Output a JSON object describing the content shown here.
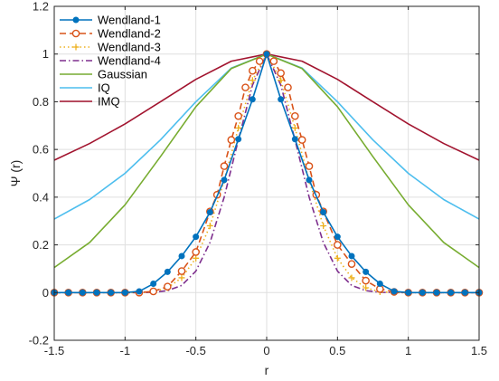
{
  "chart_data": {
    "type": "line",
    "xlabel": "r",
    "ylabel": "Ψ (r)",
    "xlim": [
      -1.5,
      1.5
    ],
    "ylim": [
      -0.2,
      1.2
    ],
    "xticks": [
      -1.5,
      -1,
      -0.5,
      0,
      0.5,
      1,
      1.5
    ],
    "xtick_labels": [
      "-1.5",
      "-1",
      "-0.5",
      "0",
      "0.5",
      "1",
      "1.5"
    ],
    "yticks": [
      -0.2,
      0,
      0.2,
      0.4,
      0.6,
      0.8,
      1,
      1.2
    ],
    "ytick_labels": [
      "-0.2",
      "0",
      "0.2",
      "0.4",
      "0.6",
      "0.8",
      "1",
      "1.2"
    ],
    "grid": true,
    "legend_position": "top-left",
    "series": [
      {
        "name": "Wendland-1",
        "color": "#0072BD",
        "style": "solid",
        "marker": "filled-circle",
        "x": [
          -1.5,
          -1.4,
          -1.3,
          -1.2,
          -1.1,
          -1.0,
          -0.9,
          -0.8,
          -0.7,
          -0.6,
          -0.5,
          -0.4,
          -0.3,
          -0.2,
          -0.1,
          0.0,
          0.1,
          0.2,
          0.3,
          0.4,
          0.5,
          0.6,
          0.7,
          0.8,
          0.9,
          1.0,
          1.1,
          1.2,
          1.3,
          1.4,
          1.5
        ],
        "y": [
          0,
          0,
          0,
          0,
          0,
          0,
          0.005,
          0.037,
          0.087,
          0.153,
          0.234,
          0.337,
          0.472,
          0.643,
          0.81,
          1.0,
          0.81,
          0.643,
          0.472,
          0.337,
          0.234,
          0.153,
          0.087,
          0.037,
          0.005,
          0,
          0,
          0,
          0,
          0,
          0
        ]
      },
      {
        "name": "Wendland-2",
        "color": "#D95319",
        "style": "dashed",
        "marker": "open-circle",
        "x": [
          -1.5,
          -1.4,
          -1.3,
          -1.2,
          -1.1,
          -1.0,
          -0.9,
          -0.8,
          -0.7,
          -0.6,
          -0.5,
          -0.4,
          -0.35,
          -0.3,
          -0.25,
          -0.2,
          -0.15,
          -0.1,
          -0.05,
          0.0,
          0.05,
          0.1,
          0.15,
          0.2,
          0.25,
          0.3,
          0.35,
          0.4,
          0.5,
          0.6,
          0.7,
          0.8,
          0.9,
          1.0,
          1.1,
          1.2,
          1.3,
          1.4,
          1.5
        ],
        "y": [
          0,
          0,
          0,
          0,
          0,
          0,
          0,
          0.005,
          0.025,
          0.09,
          0.17,
          0.34,
          0.41,
          0.53,
          0.64,
          0.74,
          0.86,
          0.93,
          0.97,
          1.0,
          0.97,
          0.92,
          0.86,
          0.74,
          0.64,
          0.53,
          0.41,
          0.34,
          0.2,
          0.12,
          0.05,
          0.015,
          0.003,
          0,
          0,
          0,
          0,
          0,
          0
        ]
      },
      {
        "name": "Wendland-3",
        "color": "#EDB120",
        "style": "dotted",
        "marker": "plus",
        "x": [
          -1.5,
          -1.0,
          -0.9,
          -0.8,
          -0.7,
          -0.6,
          -0.5,
          -0.4,
          -0.3,
          -0.2,
          -0.1,
          0.0,
          0.1,
          0.2,
          0.3,
          0.4,
          0.5,
          0.6,
          0.7,
          0.8,
          0.9,
          1.0,
          1.5
        ],
        "y": [
          0,
          0,
          0,
          0.003,
          0.02,
          0.062,
          0.144,
          0.28,
          0.47,
          0.69,
          0.89,
          1.0,
          0.89,
          0.69,
          0.47,
          0.28,
          0.144,
          0.062,
          0.02,
          0.003,
          0,
          0,
          0
        ]
      },
      {
        "name": "Wendland-4",
        "color": "#7E2F8E",
        "style": "dashdot",
        "marker": "none",
        "x": [
          -1.5,
          -1.0,
          -0.9,
          -0.8,
          -0.7,
          -0.6,
          -0.5,
          -0.4,
          -0.3,
          -0.2,
          -0.1,
          0.0,
          0.1,
          0.2,
          0.3,
          0.4,
          0.5,
          0.6,
          0.7,
          0.8,
          0.9,
          1.0,
          1.5
        ],
        "y": [
          0,
          0,
          0,
          0.001,
          0.008,
          0.03,
          0.09,
          0.21,
          0.4,
          0.64,
          0.87,
          1.0,
          0.87,
          0.64,
          0.4,
          0.21,
          0.09,
          0.03,
          0.008,
          0.001,
          0,
          0,
          0
        ]
      },
      {
        "name": "Gaussian",
        "color": "#77AC30",
        "style": "solid",
        "marker": "none",
        "x": [
          -1.5,
          -1.25,
          -1.0,
          -0.75,
          -0.5,
          -0.25,
          0.0,
          0.25,
          0.5,
          0.75,
          1.0,
          1.25,
          1.5
        ],
        "y": [
          0.105,
          0.21,
          0.368,
          0.57,
          0.779,
          0.939,
          1.0,
          0.939,
          0.779,
          0.57,
          0.368,
          0.21,
          0.105
        ]
      },
      {
        "name": "IQ",
        "color": "#4DBEEE",
        "style": "solid",
        "marker": "none",
        "x": [
          -1.5,
          -1.25,
          -1.0,
          -0.75,
          -0.5,
          -0.25,
          0.0,
          0.25,
          0.5,
          0.75,
          1.0,
          1.25,
          1.5
        ],
        "y": [
          0.308,
          0.39,
          0.5,
          0.64,
          0.8,
          0.941,
          1.0,
          0.941,
          0.8,
          0.64,
          0.5,
          0.39,
          0.308
        ]
      },
      {
        "name": "IMQ",
        "color": "#A2142F",
        "style": "solid",
        "marker": "none",
        "x": [
          -1.5,
          -1.25,
          -1.0,
          -0.75,
          -0.5,
          -0.25,
          0.0,
          0.25,
          0.5,
          0.75,
          1.0,
          1.25,
          1.5
        ],
        "y": [
          0.555,
          0.625,
          0.707,
          0.8,
          0.894,
          0.97,
          1.0,
          0.97,
          0.894,
          0.8,
          0.707,
          0.625,
          0.555
        ]
      }
    ]
  }
}
